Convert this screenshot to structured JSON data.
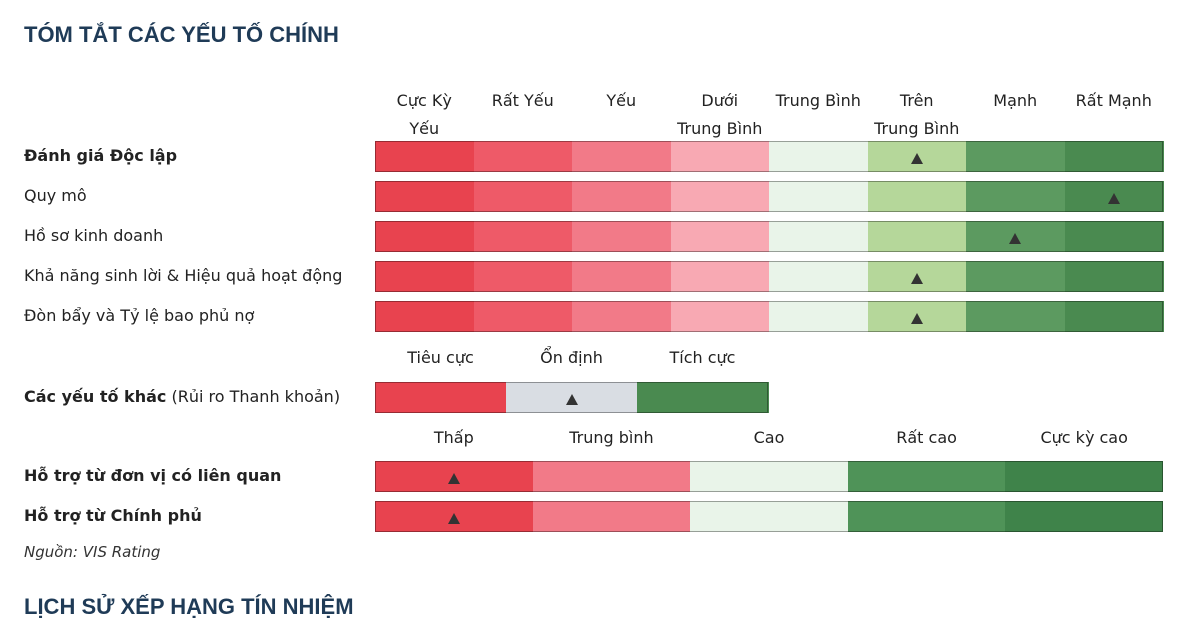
{
  "header": {
    "title": "TÓM TẮT CÁC YẾU TỐ CHÍNH"
  },
  "groups": [
    {
      "scale": [
        "Cực Kỳ\nYếu",
        "Rất Yếu",
        "Yếu",
        "Dưới\nTrung Bình",
        "Trung Bình",
        "Trên\nTrung Bình",
        "Mạnh",
        "Rất Mạnh"
      ],
      "colors": [
        "#e8434f",
        "#ee5a68",
        "#f27a88",
        "#f8a9b3",
        "#e9f4e9",
        "#b5d79a",
        "#5c9a60",
        "#4a8a50"
      ],
      "rows": [
        {
          "label": "Đánh giá Độc lập",
          "bold": true,
          "marker": 5
        },
        {
          "label": "Quy mô",
          "bold": false,
          "marker": 7
        },
        {
          "label": "Hồ sơ kinh doanh",
          "bold": false,
          "marker": 6
        },
        {
          "label": "Khả năng sinh lời & Hiệu quả hoạt động",
          "bold": false,
          "marker": 5
        },
        {
          "label": "Đòn bẩy và Tỷ lệ bao phủ nợ",
          "bold": false,
          "marker": 5
        }
      ]
    },
    {
      "scale": [
        "Tiêu cực",
        "Ổn định",
        "Tích cực"
      ],
      "colors": [
        "#e8434f",
        "#d9dde3",
        "#4a8a50"
      ],
      "rows": [
        {
          "label": "Các yếu tố khác",
          "note": "(Rủi ro Thanh khoản)",
          "bold": true,
          "marker": 1
        }
      ]
    },
    {
      "scale": [
        "Thấp",
        "Trung bình",
        "Cao",
        "Rất cao",
        "Cực kỳ cao"
      ],
      "colors": [
        "#e8434f",
        "#f27a88",
        "#e9f4e9",
        "#4f9358",
        "#3f834a"
      ],
      "rows": [
        {
          "label": "Hỗ trợ từ đơn vị có liên quan",
          "bold": true,
          "marker": 0
        },
        {
          "label": "Hỗ trợ từ Chính phủ",
          "bold": true,
          "marker": 0
        }
      ]
    }
  ],
  "source": "Nguồn: VIS Rating",
  "footer": {
    "title": "LỊCH SỬ XẾP HẠNG TÍN NHIỆM"
  }
}
